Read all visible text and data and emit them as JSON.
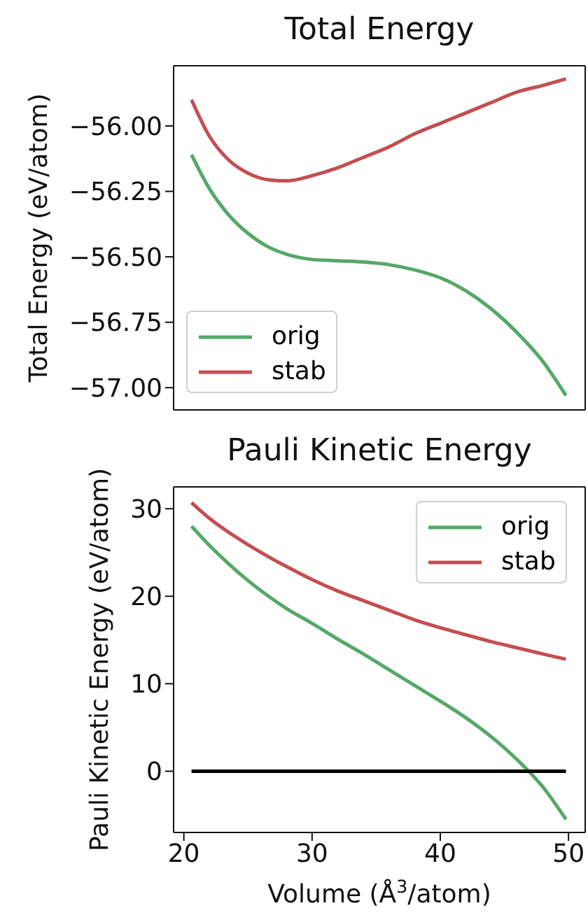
{
  "chart_data": [
    {
      "type": "line",
      "title": "Total Energy",
      "ylabel": "Total Energy (eV/atom)",
      "x": [
        20.6,
        22,
        23.5,
        25,
        26.5,
        28,
        30,
        32,
        34,
        36,
        38,
        40,
        42,
        44,
        46,
        48,
        49.8
      ],
      "series": [
        {
          "name": "orig",
          "color": "#55a868",
          "values": [
            -56.11,
            -56.24,
            -56.34,
            -56.41,
            -56.46,
            -56.49,
            -56.51,
            -56.515,
            -56.52,
            -56.53,
            -56.55,
            -56.58,
            -56.63,
            -56.7,
            -56.79,
            -56.9,
            -57.03
          ]
        },
        {
          "name": "stab",
          "color": "#c44e52",
          "values": [
            -55.9,
            -56.04,
            -56.13,
            -56.18,
            -56.205,
            -56.21,
            -56.19,
            -56.16,
            -56.12,
            -56.08,
            -56.03,
            -55.99,
            -55.95,
            -55.91,
            -55.87,
            -55.845,
            -55.82
          ]
        }
      ],
      "xlim": [
        19.2,
        51.3
      ],
      "xticks": [
        20,
        30,
        40,
        50
      ],
      "ylim": [
        -57.085,
        -55.77
      ],
      "yticks": [
        {
          "value": -57,
          "label": "−57.00"
        },
        {
          "value": -56.75,
          "label": "−56.75"
        },
        {
          "value": -56.5,
          "label": "−56.50"
        },
        {
          "value": -56.25,
          "label": "−56.25"
        },
        {
          "value": -56,
          "label": "−56.00"
        }
      ],
      "tick_labels": "y",
      "legend": "bottom left",
      "grid": false
    },
    {
      "type": "line",
      "title": "Pauli Kinetic Energy",
      "xlabel": "Volume (Å$^{3}$/atom)",
      "ylabel": "Pauli Kinetic Energy (eV/atom)",
      "x": [
        20.6,
        22,
        23.5,
        25,
        26.5,
        28,
        30,
        32,
        34,
        36,
        38,
        40,
        42,
        44,
        46,
        48,
        49.8
      ],
      "series": [
        {
          "name": "orig",
          "color": "#55a868",
          "values": [
            28,
            25.8,
            23.7,
            21.8,
            20.1,
            18.6,
            16.9,
            15.1,
            13.4,
            11.6,
            9.8,
            8.0,
            6.1,
            3.9,
            1.3,
            -1.8,
            -5.5
          ]
        },
        {
          "name": "stab",
          "color": "#c44e52",
          "values": [
            30.7,
            28.9,
            27.3,
            25.9,
            24.6,
            23.4,
            21.9,
            20.6,
            19.5,
            18.4,
            17.3,
            16.4,
            15.6,
            14.8,
            14.1,
            13.4,
            12.8
          ]
        },
        {
          "color": "#000000",
          "x": [
            20.6,
            49.8
          ],
          "values": [
            0,
            0
          ]
        }
      ],
      "xlim": [
        19.2,
        51.3
      ],
      "xticks": [
        20,
        30,
        40,
        50
      ],
      "ylim": [
        -7,
        32.5
      ],
      "yticks": [
        0,
        10,
        20,
        30
      ],
      "legend": "top right",
      "grid": false
    }
  ]
}
